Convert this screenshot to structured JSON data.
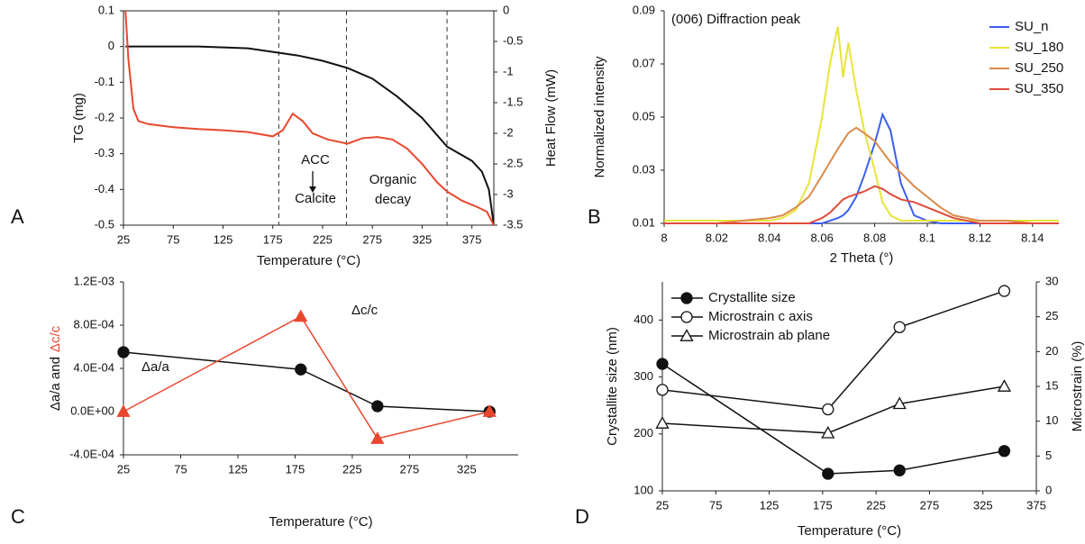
{
  "chart_data": [
    {
      "type": "line",
      "panel": "A",
      "xlabel": "Temperature (°C)",
      "ylabel": "TG (mg)",
      "y2label": "Heat Flow (mW)",
      "xlim": [
        25,
        397
      ],
      "xticks": [
        25,
        75,
        125,
        175,
        225,
        275,
        325,
        375
      ],
      "ylim": [
        -0.5,
        0.1
      ],
      "yticks": [
        0.1,
        0,
        -0.1,
        -0.2,
        -0.3,
        -0.4,
        -0.5
      ],
      "y2lim": [
        -3.5,
        0
      ],
      "y2ticks": [
        0,
        -0.5,
        -1,
        -1.5,
        -2,
        -2.5,
        -3,
        -3.5
      ],
      "vlines": [
        181,
        249,
        350
      ],
      "annotations": [
        "ACC",
        "Calcite",
        "Organic",
        "decay"
      ],
      "series": [
        {
          "color": "#111111",
          "x": [
            27,
            50,
            100,
            150,
            175,
            200,
            225,
            250,
            275,
            300,
            325,
            350,
            375,
            385,
            392,
            397
          ],
          "values": [
            0,
            0,
            0,
            -0.005,
            -0.015,
            -0.025,
            -0.04,
            -0.06,
            -0.09,
            -0.14,
            -0.2,
            -0.28,
            -0.32,
            -0.35,
            -0.4,
            -0.5
          ]
        },
        {
          "color": "#e8472e",
          "axis": "y2",
          "x": [
            27,
            30,
            35,
            40,
            50,
            75,
            100,
            125,
            150,
            175,
            185,
            195,
            205,
            215,
            230,
            250,
            265,
            280,
            295,
            310,
            325,
            340,
            350,
            365,
            380,
            390,
            397
          ],
          "values": [
            0,
            -0.8,
            -1.6,
            -1.8,
            -1.85,
            -1.9,
            -1.93,
            -1.95,
            -1.98,
            -2.05,
            -1.95,
            -1.68,
            -1.8,
            -2.0,
            -2.1,
            -2.17,
            -2.08,
            -2.06,
            -2.1,
            -2.25,
            -2.5,
            -2.8,
            -2.95,
            -3.1,
            -3.2,
            -3.28,
            -3.5
          ]
        }
      ]
    },
    {
      "type": "line",
      "panel": "B",
      "xlabel": "2 Theta (°)",
      "ylabel": "Normalized intensity",
      "annotation": "(006) Diffraction peak",
      "xlim": [
        8,
        8.15
      ],
      "xticks": [
        8,
        8.02,
        8.04,
        8.06,
        8.08,
        8.1,
        8.12,
        8.14
      ],
      "ylim": [
        0.01,
        0.09
      ],
      "yticks": [
        0.01,
        0.03,
        0.05,
        0.07,
        0.09
      ],
      "x": [
        8,
        8.01,
        8.02,
        8.03,
        8.04,
        8.045,
        8.05,
        8.055,
        8.06,
        8.063,
        8.066,
        8.068,
        8.07,
        8.073,
        8.076,
        8.08,
        8.083,
        8.086,
        8.09,
        8.095,
        8.1,
        8.105,
        8.11,
        8.115,
        8.12,
        8.13,
        8.14,
        8.15
      ],
      "series": [
        {
          "name": "SU_n",
          "color": "#3c5ff0",
          "values": [
            0.01,
            0.01,
            0.01,
            0.01,
            0.01,
            0.01,
            0.01,
            0.01,
            0.01,
            0.011,
            0.012,
            0.013,
            0.015,
            0.02,
            0.028,
            0.04,
            0.051,
            0.045,
            0.025,
            0.013,
            0.011,
            0.01,
            0.01,
            0.01,
            0.01,
            0.01,
            0.01,
            0.01
          ]
        },
        {
          "name": "SU_180",
          "color": "#e8e43a",
          "values": [
            0.011,
            0.011,
            0.011,
            0.011,
            0.011,
            0.012,
            0.015,
            0.025,
            0.05,
            0.07,
            0.084,
            0.065,
            0.078,
            0.06,
            0.045,
            0.03,
            0.018,
            0.013,
            0.011,
            0.011,
            0.011,
            0.011,
            0.011,
            0.011,
            0.011,
            0.011,
            0.011,
            0.011
          ]
        },
        {
          "name": "SU_250",
          "color": "#d98a4a",
          "values": [
            0.01,
            0.01,
            0.01,
            0.011,
            0.012,
            0.013,
            0.016,
            0.02,
            0.028,
            0.033,
            0.038,
            0.041,
            0.044,
            0.046,
            0.044,
            0.041,
            0.037,
            0.033,
            0.029,
            0.024,
            0.02,
            0.016,
            0.013,
            0.012,
            0.011,
            0.011,
            0.01,
            0.01
          ]
        },
        {
          "name": "SU_350",
          "color": "#e04a3a",
          "values": [
            0.01,
            0.01,
            0.01,
            0.01,
            0.01,
            0.01,
            0.01,
            0.01,
            0.012,
            0.014,
            0.017,
            0.019,
            0.02,
            0.021,
            0.022,
            0.024,
            0.023,
            0.021,
            0.019,
            0.018,
            0.016,
            0.014,
            0.012,
            0.011,
            0.01,
            0.01,
            0.01,
            0.01
          ]
        }
      ]
    },
    {
      "type": "line",
      "panel": "C",
      "xlabel": "Temperature (°C)",
      "ylabel": [
        "Δa/a and",
        "Δc/c"
      ],
      "xlim": [
        25,
        370
      ],
      "xticks": [
        25,
        75,
        125,
        175,
        225,
        275,
        325
      ],
      "ylim": [
        -0.0004,
        0.0012
      ],
      "yticks": [
        {
          "value": 0.0012,
          "label": "1.2E-03"
        },
        {
          "value": 0.0008,
          "label": "8.0E-04"
        },
        {
          "value": 0.0004,
          "label": "4.0E-04"
        },
        {
          "value": 0,
          "label": "0.0E+00"
        },
        {
          "value": -0.0004,
          "label": "-4.0E-04"
        }
      ],
      "x": [
        25,
        180,
        247,
        345
      ],
      "series": [
        {
          "name": "Δa/a",
          "color": "#111111",
          "marker": "filled-circle",
          "values": [
            0.00055,
            0.00039,
            5e-05,
            0
          ]
        },
        {
          "name": "Δc/c",
          "color": "#e8472e",
          "marker": "filled-triangle",
          "values": [
            0,
            0.00088,
            -0.00025,
            0
          ]
        }
      ]
    },
    {
      "type": "line",
      "panel": "D",
      "xlabel": "Temperature (°C)",
      "ylabel": "Crystallite size (nm)",
      "y2label": "Microstrain (%)",
      "xlim": [
        25,
        375
      ],
      "xticks": [
        25,
        75,
        125,
        175,
        225,
        275,
        325,
        375
      ],
      "ylim": [
        100,
        467
      ],
      "yticks": [
        100,
        200,
        300,
        400
      ],
      "y2lim": [
        0,
        30
      ],
      "y2ticks": [
        0,
        5,
        10,
        15,
        20,
        25,
        30
      ],
      "x": [
        25,
        180,
        247,
        345
      ],
      "series": [
        {
          "name": "Crystallite size",
          "color": "#111111",
          "marker": "filled-circle",
          "values": [
            323,
            130,
            136,
            170
          ]
        },
        {
          "name": "Microstrain c axis",
          "color": "#111111",
          "marker": "open-circle",
          "axis": "y2",
          "values": [
            14.5,
            11.7,
            23.5,
            28.7
          ]
        },
        {
          "name": "Microstrain ab plane",
          "color": "#111111",
          "marker": "open-triangle",
          "axis": "y2",
          "values": [
            9.7,
            8.3,
            12.5,
            15
          ]
        }
      ]
    }
  ]
}
